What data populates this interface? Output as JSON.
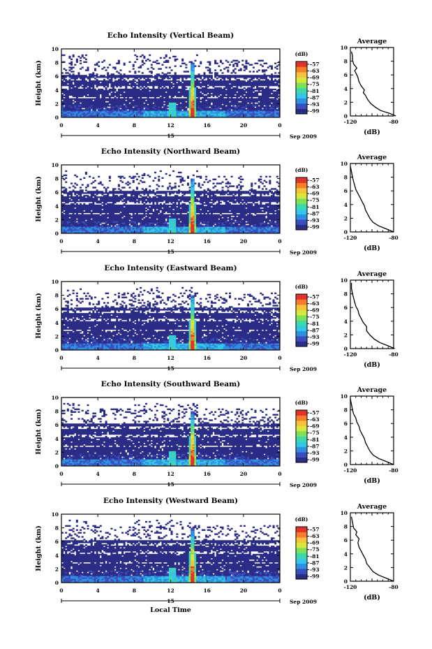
{
  "chart_data": [
    {
      "type": "heatmap",
      "title": "Echo Intensity (Vertical Beam)",
      "ylabel": "Height (km)",
      "xlabel": "",
      "x_ticks": [
        "0",
        "4",
        "8",
        "12",
        "16",
        "20",
        "0"
      ],
      "y_ticks": [
        "0",
        "2",
        "4",
        "6",
        "8",
        "10"
      ],
      "xlim": [
        0,
        24
      ],
      "ylim": [
        0,
        10
      ],
      "date_label": "15",
      "date_suffix": "Sep 2009",
      "colorbar": {
        "label": "(dB)",
        "ticks": [
          "-57",
          "-63",
          "-69",
          "-75",
          "-81",
          "-87",
          "-93",
          "-99"
        ],
        "colors": [
          "#2b2c86",
          "#3a4fbf",
          "#2f8fe0",
          "#34c7e6",
          "#3fd9a8",
          "#7fe05a",
          "#d7e83c",
          "#f6c23a",
          "#f57d2c",
          "#e2332a"
        ]
      },
      "profile": {
        "title": "Average",
        "xlabel": "(dB)",
        "x_ticks": [
          "-120",
          "-80"
        ],
        "xlim": [
          -120,
          -80
        ],
        "y_ticks": [
          "0",
          "2",
          "4",
          "6",
          "8",
          "10"
        ],
        "ylim": [
          0,
          10
        ],
        "points": [
          [
            -78,
            0
          ],
          [
            -84,
            0.4
          ],
          [
            -92,
            0.8
          ],
          [
            -97,
            1.3
          ],
          [
            -101,
            1.8
          ],
          [
            -104,
            2.4
          ],
          [
            -106,
            3.0
          ],
          [
            -108,
            3.4
          ],
          [
            -107,
            3.8
          ],
          [
            -110,
            4.4
          ],
          [
            -112,
            5.0
          ],
          [
            -113,
            5.6
          ],
          [
            -114,
            6.0
          ],
          [
            -116,
            6.6
          ],
          [
            -114,
            7.0
          ],
          [
            -117,
            7.6
          ],
          [
            -118,
            8.2
          ],
          [
            -118,
            8.8
          ],
          [
            -119,
            9.4
          ]
        ]
      }
    },
    {
      "type": "heatmap",
      "title": "Echo Intensity (Northward Beam)",
      "ylabel": "Height (km)",
      "xlabel": "",
      "x_ticks": [
        "0",
        "4",
        "8",
        "12",
        "16",
        "20",
        "0"
      ],
      "y_ticks": [
        "0",
        "2",
        "4",
        "6",
        "8",
        "10"
      ],
      "xlim": [
        0,
        24
      ],
      "ylim": [
        0,
        10
      ],
      "date_label": "15",
      "date_suffix": "Sep 2009",
      "colorbar": {
        "label": "(dB)",
        "ticks": [
          "-57",
          "-63",
          "-69",
          "-75",
          "-81",
          "-87",
          "-93",
          "-99"
        ],
        "colors": [
          "#2b2c86",
          "#3a4fbf",
          "#2f8fe0",
          "#34c7e6",
          "#3fd9a8",
          "#7fe05a",
          "#d7e83c",
          "#f6c23a",
          "#f57d2c",
          "#e2332a"
        ]
      },
      "profile": {
        "title": "Average",
        "xlabel": "(dB)",
        "x_ticks": [
          "-120",
          "-80"
        ],
        "xlim": [
          -120,
          -80
        ],
        "y_ticks": [
          "0",
          "2",
          "4",
          "6",
          "8",
          "10"
        ],
        "ylim": [
          0,
          10
        ],
        "points": [
          [
            -80,
            0
          ],
          [
            -86,
            0.4
          ],
          [
            -94,
            0.9
          ],
          [
            -99,
            1.4
          ],
          [
            -102,
            2.0
          ],
          [
            -104,
            2.6
          ],
          [
            -106,
            3.2
          ],
          [
            -107,
            3.8
          ],
          [
            -109,
            4.4
          ],
          [
            -111,
            5.0
          ],
          [
            -113,
            5.6
          ],
          [
            -115,
            6.2
          ],
          [
            -116,
            6.8
          ],
          [
            -117,
            7.4
          ],
          [
            -118,
            8.0
          ],
          [
            -119,
            8.8
          ],
          [
            -120,
            9.6
          ]
        ]
      }
    },
    {
      "type": "heatmap",
      "title": "Echo Intensity (Eastward Beam)",
      "ylabel": "Height (km)",
      "xlabel": "",
      "x_ticks": [
        "0",
        "4",
        "8",
        "12",
        "16",
        "20",
        "0"
      ],
      "y_ticks": [
        "0",
        "2",
        "4",
        "6",
        "8",
        "10"
      ],
      "xlim": [
        0,
        24
      ],
      "ylim": [
        0,
        10
      ],
      "date_label": "15",
      "date_suffix": "Sep 2009",
      "colorbar": {
        "label": "(dB)",
        "ticks": [
          "-57",
          "-63",
          "-69",
          "-75",
          "-81",
          "-87",
          "-93",
          "-99"
        ],
        "colors": [
          "#2b2c86",
          "#3a4fbf",
          "#2f8fe0",
          "#34c7e6",
          "#3fd9a8",
          "#7fe05a",
          "#d7e83c",
          "#f6c23a",
          "#f57d2c",
          "#e2332a"
        ]
      },
      "profile": {
        "title": "Average",
        "xlabel": "(dB)",
        "x_ticks": [
          "-120",
          "-80"
        ],
        "xlim": [
          -120,
          -80
        ],
        "y_ticks": [
          "0",
          "2",
          "4",
          "6",
          "8",
          "10"
        ],
        "ylim": [
          0,
          10
        ],
        "points": [
          [
            -79,
            0
          ],
          [
            -85,
            0.4
          ],
          [
            -93,
            0.9
          ],
          [
            -98,
            1.4
          ],
          [
            -102,
            2.0
          ],
          [
            -105,
            2.6
          ],
          [
            -105,
            3.2
          ],
          [
            -108,
            3.8
          ],
          [
            -110,
            4.4
          ],
          [
            -112,
            5.0
          ],
          [
            -113,
            5.6
          ],
          [
            -115,
            6.2
          ],
          [
            -116,
            6.8
          ],
          [
            -117,
            7.4
          ],
          [
            -118,
            8.0
          ],
          [
            -119,
            8.8
          ],
          [
            -119,
            9.6
          ]
        ]
      }
    },
    {
      "type": "heatmap",
      "title": "Echo Intensity (Southward Beam)",
      "ylabel": "Height (km)",
      "xlabel": "",
      "x_ticks": [
        "0",
        "4",
        "8",
        "12",
        "16",
        "20",
        "0"
      ],
      "y_ticks": [
        "0",
        "2",
        "4",
        "6",
        "8",
        "10"
      ],
      "xlim": [
        0,
        24
      ],
      "ylim": [
        0,
        10
      ],
      "date_label": "15",
      "date_suffix": "Sep 2009",
      "colorbar": {
        "label": "(dB)",
        "ticks": [
          "-57",
          "-63",
          "-69",
          "-75",
          "-81",
          "-87",
          "-93",
          "-99"
        ],
        "colors": [
          "#2b2c86",
          "#3a4fbf",
          "#2f8fe0",
          "#34c7e6",
          "#3fd9a8",
          "#7fe05a",
          "#d7e83c",
          "#f6c23a",
          "#f57d2c",
          "#e2332a"
        ]
      },
      "profile": {
        "title": "Average",
        "xlabel": "(dB)",
        "x_ticks": [
          "-120",
          "-80"
        ],
        "xlim": [
          -120,
          -80
        ],
        "y_ticks": [
          "0",
          "2",
          "4",
          "6",
          "8",
          "10"
        ],
        "ylim": [
          0,
          10
        ],
        "points": [
          [
            -80,
            0
          ],
          [
            -86,
            0.4
          ],
          [
            -94,
            0.9
          ],
          [
            -99,
            1.4
          ],
          [
            -102,
            2.0
          ],
          [
            -104,
            2.6
          ],
          [
            -106,
            3.2
          ],
          [
            -107,
            3.8
          ],
          [
            -109,
            4.4
          ],
          [
            -111,
            5.0
          ],
          [
            -112,
            5.6
          ],
          [
            -114,
            6.2
          ],
          [
            -115,
            6.8
          ],
          [
            -117,
            7.4
          ],
          [
            -118,
            8.0
          ],
          [
            -119,
            8.8
          ],
          [
            -120,
            9.6
          ]
        ]
      }
    },
    {
      "type": "heatmap",
      "title": "Echo Intensity (Westward Beam)",
      "ylabel": "Height (km)",
      "xlabel": "Local Time",
      "x_ticks": [
        "0",
        "4",
        "8",
        "12",
        "16",
        "20",
        "0"
      ],
      "y_ticks": [
        "0",
        "2",
        "4",
        "6",
        "8",
        "10"
      ],
      "xlim": [
        0,
        24
      ],
      "ylim": [
        0,
        10
      ],
      "date_label": "15",
      "date_suffix": "Sep 2009",
      "colorbar": {
        "label": "(dB)",
        "ticks": [
          "-57",
          "-63",
          "-69",
          "-75",
          "-81",
          "-87",
          "-93",
          "-99"
        ],
        "colors": [
          "#2b2c86",
          "#3a4fbf",
          "#2f8fe0",
          "#34c7e6",
          "#3fd9a8",
          "#7fe05a",
          "#d7e83c",
          "#f6c23a",
          "#f57d2c",
          "#e2332a"
        ]
      },
      "profile": {
        "title": "Average",
        "xlabel": "(dB)",
        "x_ticks": [
          "-120",
          "-80"
        ],
        "xlim": [
          -120,
          -80
        ],
        "y_ticks": [
          "0",
          "2",
          "4",
          "6",
          "8",
          "10"
        ],
        "ylim": [
          0,
          10
        ],
        "points": [
          [
            -80,
            0
          ],
          [
            -86,
            0.4
          ],
          [
            -94,
            0.9
          ],
          [
            -99,
            1.4
          ],
          [
            -102,
            2.0
          ],
          [
            -105,
            2.6
          ],
          [
            -106,
            3.2
          ],
          [
            -108,
            3.8
          ],
          [
            -110,
            4.4
          ],
          [
            -112,
            5.0
          ],
          [
            -113,
            5.6
          ],
          [
            -112,
            6.2
          ],
          [
            -115,
            6.8
          ],
          [
            -114,
            7.2
          ],
          [
            -117,
            7.8
          ],
          [
            -118,
            8.6
          ],
          [
            -119,
            9.4
          ]
        ]
      }
    }
  ]
}
